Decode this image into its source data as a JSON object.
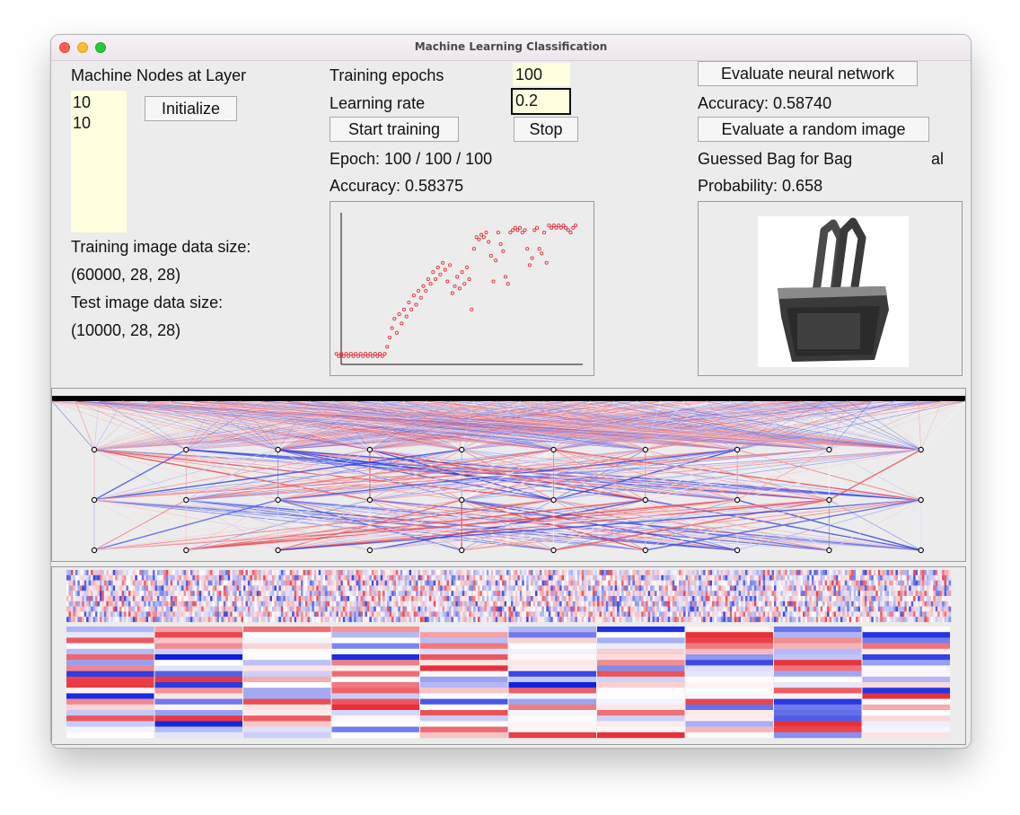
{
  "window": {
    "title": "Machine Learning Classification"
  },
  "layers": {
    "label": "Machine Nodes at Layer",
    "nodes_text": "10\n10",
    "initialize_label": "Initialize"
  },
  "data_info": {
    "train_label": "Training image data size:",
    "train_value": "(60000, 28, 28)",
    "test_label": "Test image data size:",
    "test_value": "(10000, 28, 28)"
  },
  "training": {
    "epochs_label": "Training epochs",
    "epochs_value": "100",
    "rate_label": "Learning rate",
    "rate_value": "0.2",
    "start_label": "Start training",
    "stop_label": "Stop",
    "epoch_text": "Epoch:  100 /  100 /  100",
    "accuracy_text": "Accuracy: 0.58375"
  },
  "evaluation": {
    "evaluate_label": "Evaluate neural network",
    "accuracy_text": "Accuracy: 0.58740",
    "random_label": "Evaluate a random image",
    "guess_text": "Guessed Bag for Bag",
    "guess_suffix": "al",
    "probability_text": "Probability:  0.658"
  },
  "chart_data": {
    "type": "scatter",
    "title": "",
    "xlabel": "",
    "ylabel": "",
    "xlim": [
      0,
      100
    ],
    "ylim": [
      0,
      0.65
    ],
    "marker_color": "#e8303a",
    "points": [
      [
        1,
        0.03
      ],
      [
        2,
        0.02
      ],
      [
        3,
        0.03
      ],
      [
        4,
        0.02
      ],
      [
        5,
        0.03
      ],
      [
        6,
        0.02
      ],
      [
        7,
        0.03
      ],
      [
        8,
        0.02
      ],
      [
        9,
        0.03
      ],
      [
        10,
        0.02
      ],
      [
        11,
        0.03
      ],
      [
        12,
        0.02
      ],
      [
        13,
        0.03
      ],
      [
        14,
        0.02
      ],
      [
        15,
        0.03
      ],
      [
        16,
        0.02
      ],
      [
        17,
        0.03
      ],
      [
        18,
        0.02
      ],
      [
        19,
        0.03
      ],
      [
        20,
        0.02
      ],
      [
        21,
        0.03
      ],
      [
        22,
        0.06
      ],
      [
        23,
        0.1
      ],
      [
        24,
        0.14
      ],
      [
        25,
        0.18
      ],
      [
        26,
        0.12
      ],
      [
        27,
        0.2
      ],
      [
        28,
        0.16
      ],
      [
        29,
        0.22
      ],
      [
        30,
        0.19
      ],
      [
        31,
        0.25
      ],
      [
        32,
        0.22
      ],
      [
        33,
        0.28
      ],
      [
        34,
        0.24
      ],
      [
        35,
        0.3
      ],
      [
        36,
        0.27
      ],
      [
        37,
        0.32
      ],
      [
        38,
        0.3
      ],
      [
        39,
        0.35
      ],
      [
        40,
        0.33
      ],
      [
        41,
        0.38
      ],
      [
        42,
        0.35
      ],
      [
        43,
        0.4
      ],
      [
        44,
        0.37
      ],
      [
        45,
        0.42
      ],
      [
        46,
        0.39
      ],
      [
        47,
        0.34
      ],
      [
        48,
        0.41
      ],
      [
        49,
        0.29
      ],
      [
        50,
        0.32
      ],
      [
        51,
        0.36
      ],
      [
        52,
        0.31
      ],
      [
        53,
        0.38
      ],
      [
        54,
        0.33
      ],
      [
        55,
        0.4
      ],
      [
        56,
        0.35
      ],
      [
        57,
        0.22
      ],
      [
        58,
        0.48
      ],
      [
        59,
        0.53
      ],
      [
        60,
        0.52
      ],
      [
        61,
        0.54
      ],
      [
        62,
        0.53
      ],
      [
        63,
        0.55
      ],
      [
        64,
        0.51
      ],
      [
        65,
        0.45
      ],
      [
        66,
        0.34
      ],
      [
        67,
        0.43
      ],
      [
        68,
        0.55
      ],
      [
        69,
        0.5
      ],
      [
        70,
        0.47
      ],
      [
        71,
        0.36
      ],
      [
        72,
        0.33
      ],
      [
        73,
        0.55
      ],
      [
        74,
        0.56
      ],
      [
        75,
        0.57
      ],
      [
        76,
        0.56
      ],
      [
        77,
        0.57
      ],
      [
        78,
        0.55
      ],
      [
        79,
        0.56
      ],
      [
        80,
        0.48
      ],
      [
        81,
        0.41
      ],
      [
        82,
        0.44
      ],
      [
        83,
        0.56
      ],
      [
        84,
        0.57
      ],
      [
        85,
        0.48
      ],
      [
        86,
        0.46
      ],
      [
        87,
        0.55
      ],
      [
        88,
        0.42
      ],
      [
        89,
        0.58
      ],
      [
        90,
        0.57
      ],
      [
        91,
        0.58
      ],
      [
        92,
        0.57
      ],
      [
        93,
        0.58
      ],
      [
        94,
        0.57
      ],
      [
        95,
        0.58
      ],
      [
        96,
        0.57
      ],
      [
        97,
        0.56
      ],
      [
        98,
        0.55
      ],
      [
        99,
        0.57
      ],
      [
        100,
        0.58
      ]
    ]
  },
  "image": {
    "icon": "handbag-icon"
  },
  "network": {
    "layer_sizes": [
      10,
      10,
      10
    ],
    "positive_color": "#e8303a",
    "negative_color": "#2030e0"
  },
  "heatmap": {
    "rows_top": 10,
    "blocks": 10,
    "rows_per_block": 20
  }
}
